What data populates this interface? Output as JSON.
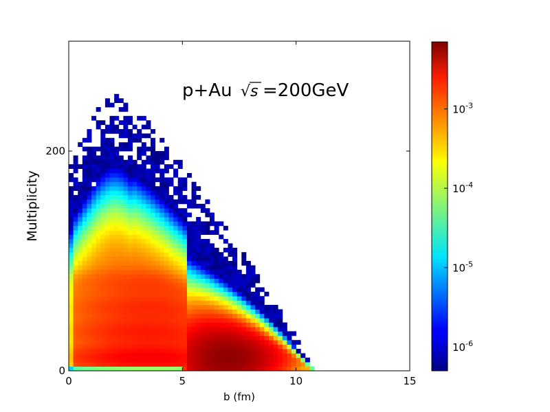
{
  "chart_data": {
    "type": "heatmap",
    "title_prefix": "p+Au",
    "title_sqrt_symbol": "√",
    "title_sqrt_var": "s",
    "title_suffix": "=200GeV",
    "xlabel": "b (fm)",
    "ylabel": "Multiplicity",
    "xlim": [
      0,
      15
    ],
    "ylim": [
      0,
      300
    ],
    "x_ticks": [
      0,
      5,
      10,
      15
    ],
    "y_ticks": [
      0,
      200
    ],
    "colorscale": "jet",
    "color_scale_type": "log",
    "colorbar_range": [
      5e-07,
      0.007
    ],
    "colorbar_ticks": [
      {
        "value": 1e-06,
        "base": "10",
        "exp": "-6"
      },
      {
        "value": 1e-05,
        "base": "10",
        "exp": "-5"
      },
      {
        "value": 0.0001,
        "base": "10",
        "exp": "-4"
      },
      {
        "value": 0.001,
        "base": "10",
        "exp": "-3"
      }
    ],
    "bin_width_b": 0.2,
    "bin_width_mult": 4,
    "density_model": {
      "peak_value": 0.006,
      "peak_b": 7.0,
      "peak_multiplicity": 12,
      "max_b": 10.8,
      "max_multiplicity": 250,
      "band_multiplicities": [
        12,
        36,
        58,
        80
      ],
      "band_weights": [
        1.0,
        0.6,
        0.45,
        0.3
      ],
      "description": "Event-count density in impact parameter b vs charged multiplicity; dense band at low multiplicity decreasing with b, sparse tail up to ~250 at small b"
    }
  }
}
